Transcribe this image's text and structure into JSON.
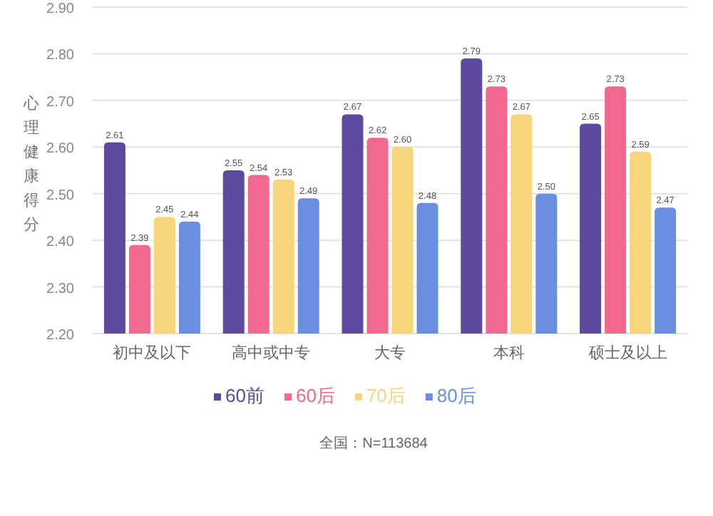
{
  "chart_data": {
    "type": "bar",
    "ylabel": "心理健康得分",
    "categories": [
      "初中及以下",
      "高中或中专",
      "大专",
      "本科",
      "硕士及以上"
    ],
    "series": [
      {
        "name": "60前",
        "color": "#5b4a9e",
        "values": [
          2.61,
          2.55,
          2.67,
          2.79,
          2.65
        ],
        "value_labels": [
          "2.61",
          "2.55",
          "2.67",
          "2.79",
          "2.65"
        ]
      },
      {
        "name": "60后",
        "color": "#f2698f",
        "values": [
          2.39,
          2.54,
          2.62,
          2.73,
          2.73
        ],
        "value_labels": [
          "2.39",
          "2.54",
          "2.62",
          "2.73",
          "2.73"
        ]
      },
      {
        "name": "70后",
        "color": "#f8d47a",
        "values": [
          2.45,
          2.53,
          2.6,
          2.67,
          2.59
        ],
        "value_labels": [
          "2.45",
          "2.53",
          "2.60",
          "2.67",
          "2.59"
        ]
      },
      {
        "name": "80后",
        "color": "#6a8fe0",
        "values": [
          2.44,
          2.49,
          2.48,
          2.5,
          2.47
        ],
        "value_labels": [
          "2.44",
          "2.49",
          "2.48",
          "2.50",
          "2.47"
        ]
      }
    ],
    "ylim": [
      2.2,
      2.9
    ],
    "yticks": [
      {
        "value": 2.2,
        "label": "2.20"
      },
      {
        "value": 2.3,
        "label": "2.30"
      },
      {
        "value": 2.4,
        "label": "2.40"
      },
      {
        "value": 2.5,
        "label": "2.50"
      },
      {
        "value": 2.6,
        "label": "2.60"
      },
      {
        "value": 2.7,
        "label": "2.70"
      },
      {
        "value": 2.8,
        "label": "2.80"
      },
      {
        "value": 2.9,
        "label": "2.90"
      }
    ],
    "grid": "y",
    "legend": "bottom",
    "annotations": [
      "全国：N=113684"
    ]
  }
}
